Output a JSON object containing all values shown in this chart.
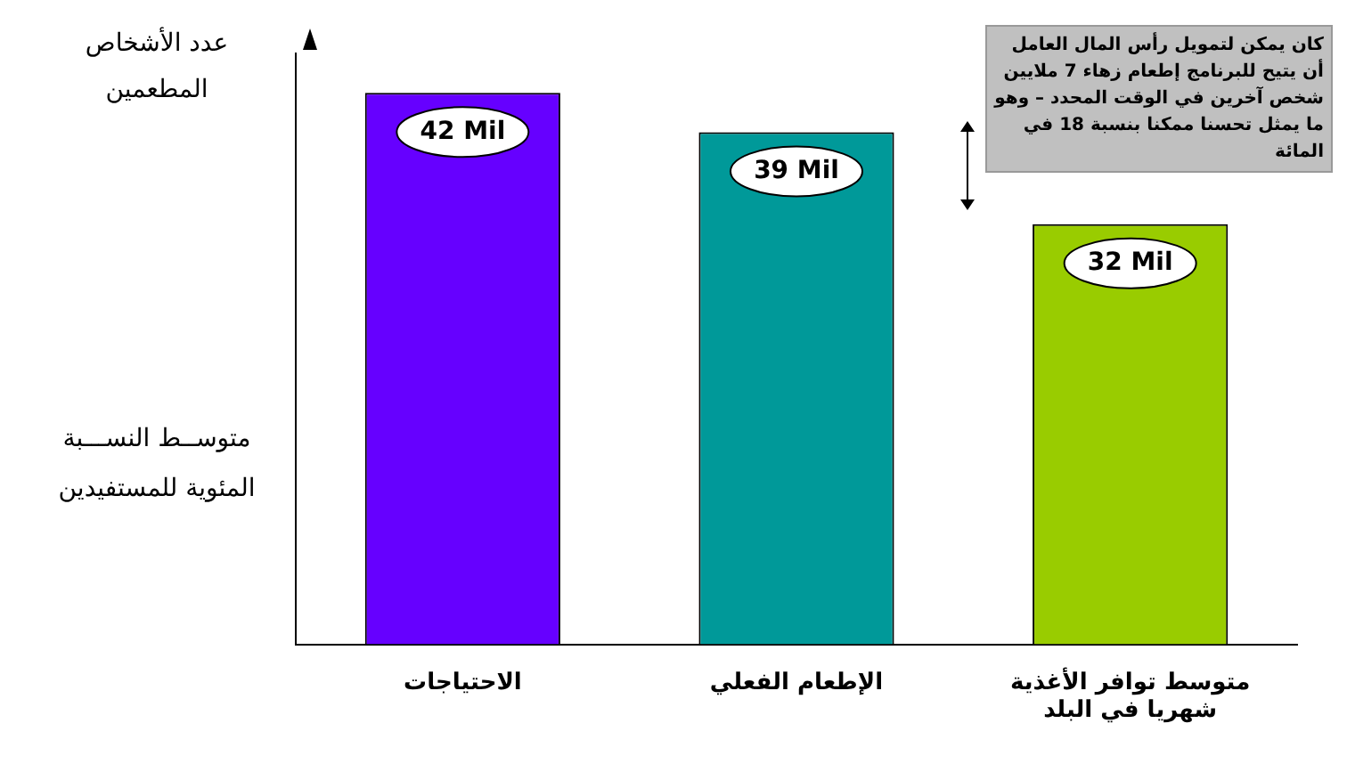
{
  "chart_data": {
    "type": "bar",
    "ylabel": "عدد الأشخاص المطعمين",
    "categories": [
      "الاحتياجات",
      "الإطعام الفعلي",
      "متوسط توافر الأغذية شهريا في البلد"
    ],
    "values": [
      42,
      39,
      32
    ],
    "value_labels": [
      "42 Mil",
      "39 Mil",
      "32 Mil"
    ],
    "colors": [
      "#6600ff",
      "#009999",
      "#99cc00"
    ],
    "grid": false,
    "legend": false,
    "annotations": [
      "كان يمكن لتمويل رأس المال العامل أن يتيح للبرنامج إطعام زهاء 7 ملايين شخص آخرين في الوقت المحدد – وهو ما يمثل تحسنا ممكنا بنسبة 18 في المائة",
      "متوســط النســـبة المئوية للمستفيدين"
    ]
  }
}
